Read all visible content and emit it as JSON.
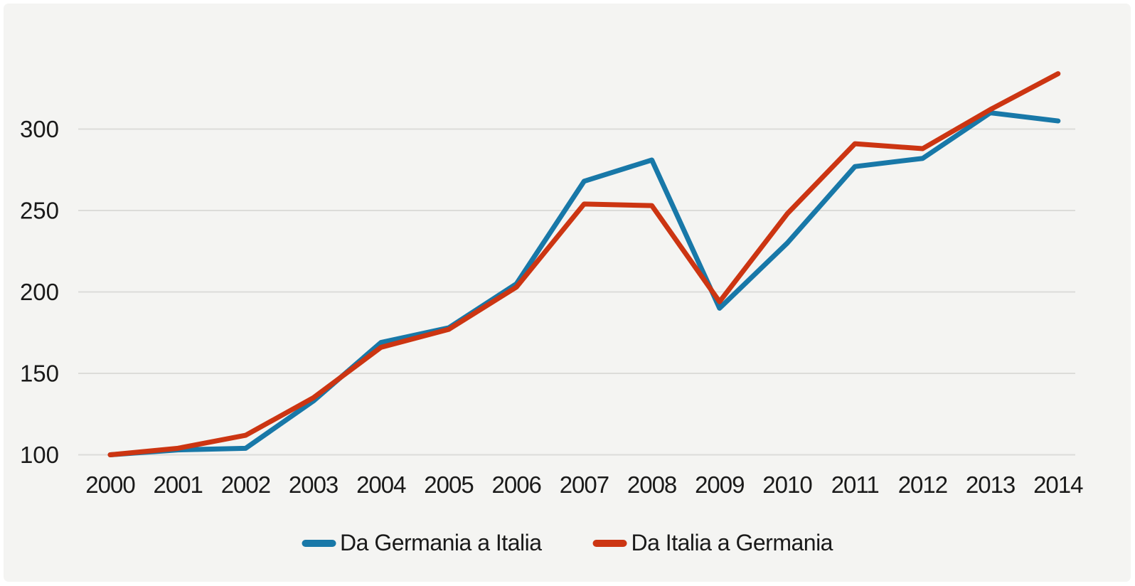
{
  "chart_data": {
    "type": "line",
    "title": "",
    "xlabel": "",
    "ylabel": "",
    "categories": [
      "2000",
      "2001",
      "2002",
      "2003",
      "2004",
      "2005",
      "2006",
      "2007",
      "2008",
      "2009",
      "2010",
      "2011",
      "2012",
      "2013",
      "2014"
    ],
    "series": [
      {
        "name": "Da Germania a Italia",
        "color": "#1878a8",
        "values": [
          100,
          103,
          104,
          133,
          169,
          178,
          205,
          268,
          281,
          190,
          230,
          277,
          282,
          310,
          305
        ]
      },
      {
        "name": "Da Italia a Germania",
        "color": "#cc3512",
        "values": [
          100,
          104,
          112,
          135,
          166,
          177,
          203,
          254,
          253,
          194,
          248,
          291,
          288,
          312,
          334
        ]
      }
    ],
    "y_ticks": [
      100,
      150,
      200,
      250,
      300
    ],
    "ylim": [
      100,
      340
    ],
    "grid": "horizontal",
    "legend_position": "bottom"
  },
  "colors": {
    "background": "#f4f4f2",
    "frame": "#ffffff",
    "gridline": "#dcdcd9",
    "text": "#1a1a1a"
  }
}
